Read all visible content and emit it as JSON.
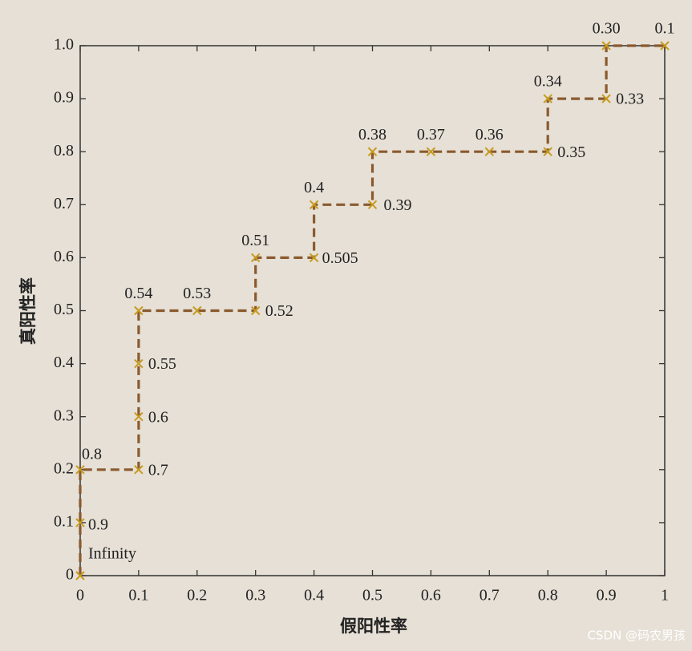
{
  "chart_data": {
    "type": "line",
    "xlabel": "假阳性率",
    "ylabel": "真阳性率",
    "x": [
      0,
      0,
      0,
      0.1,
      0.1,
      0.1,
      0.1,
      0.2,
      0.3,
      0.3,
      0.4,
      0.4,
      0.5,
      0.5,
      0.6,
      0.7,
      0.8,
      0.8,
      0.9,
      0.9,
      1
    ],
    "series": [
      {
        "color": "#8a5a2e",
        "marker_color": "#c79a1e",
        "values": [
          0,
          0.1,
          0.2,
          0.2,
          0.3,
          0.4,
          0.5,
          0.5,
          0.5,
          0.6,
          0.6,
          0.7,
          0.7,
          0.8,
          0.8,
          0.8,
          0.8,
          0.9,
          0.9,
          1,
          1
        ],
        "point_labels": [
          "Infinity",
          "0.9",
          "0.8",
          "0.7",
          "0.6",
          "0.55",
          "0.54",
          "0.53",
          "0.52",
          "0.51",
          "0.505",
          "0.4",
          "0.39",
          "0.38",
          "0.37",
          "0.36",
          "0.35",
          "0.34",
          "0.33",
          "0.30",
          "0.1"
        ]
      }
    ],
    "xlim": [
      0,
      1
    ],
    "ylim": [
      0,
      1
    ],
    "xticks": [
      0,
      0.1,
      0.2,
      0.3,
      0.4,
      0.5,
      0.6,
      0.7,
      0.8,
      0.9,
      1
    ],
    "yticks": [
      0,
      0.1,
      0.2,
      0.3,
      0.4,
      0.5,
      0.6,
      0.7,
      0.8,
      0.9,
      {
        "value": 1,
        "label": "1.0"
      }
    ],
    "watermark": "CSDN @码农男孩"
  }
}
